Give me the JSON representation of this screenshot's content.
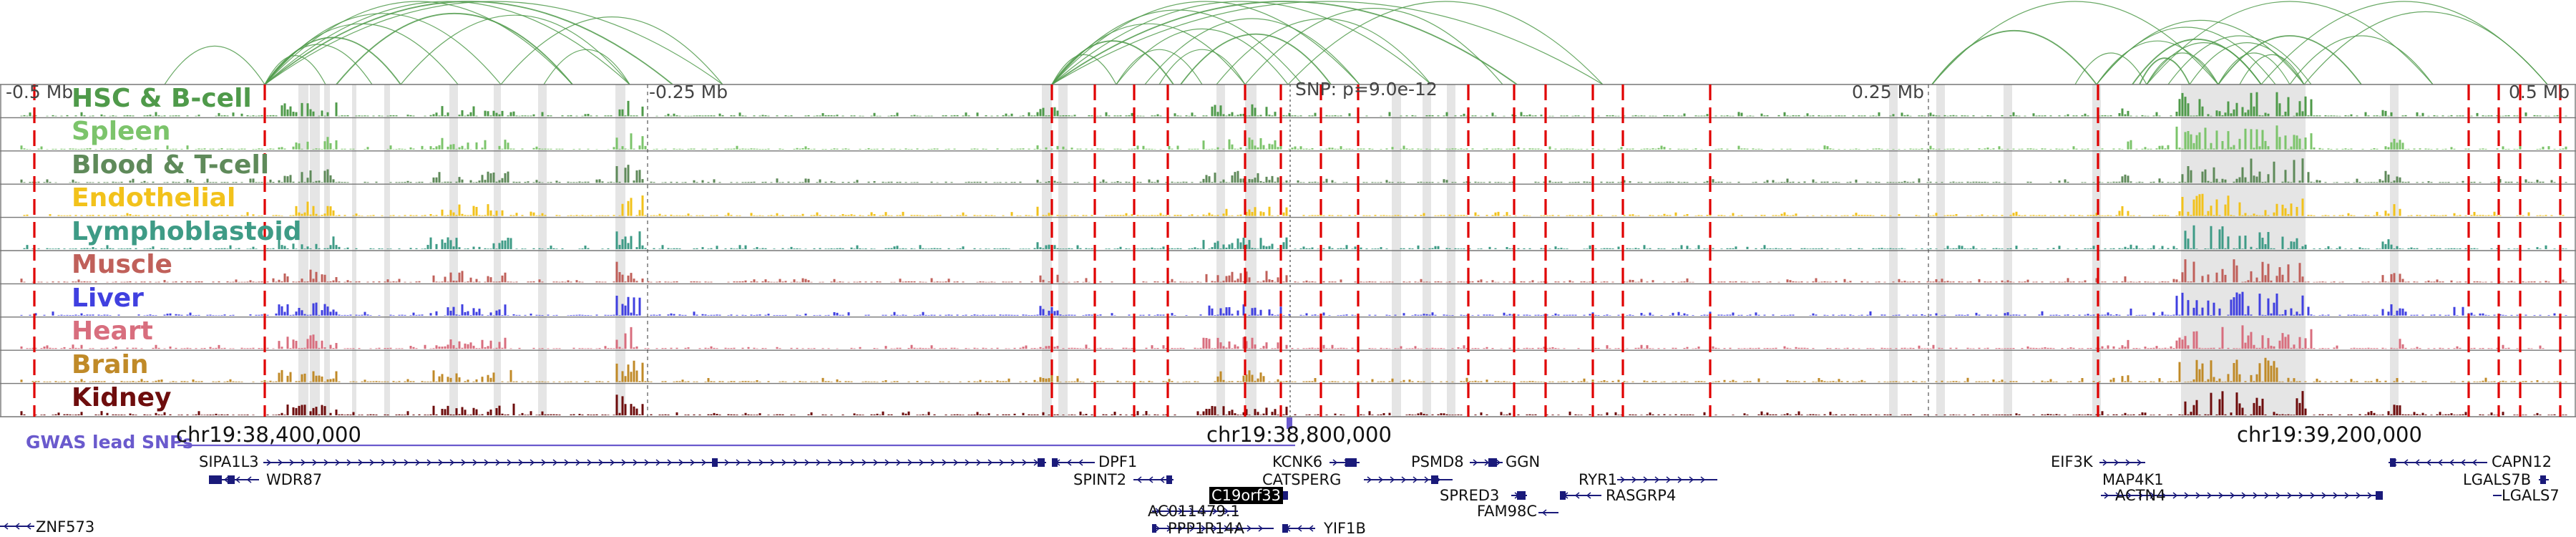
{
  "scale_labels": {
    "left_edge": "-0.5 Mb",
    "left_quarter": "-0.25 Mb",
    "snp": "SNP: p=9.0e-12",
    "right_quarter": "0.25 Mb",
    "right_edge": "0.5 Mb"
  },
  "tracks": [
    {
      "name": "HSC & B-cell",
      "color": "#4f9a4a"
    },
    {
      "name": "Spleen",
      "color": "#7cc46b"
    },
    {
      "name": "Blood & T-cell",
      "color": "#5f8a5a"
    },
    {
      "name": "Endothelial",
      "color": "#f2c21b"
    },
    {
      "name": "Lymphoblastoid",
      "color": "#3e9b86"
    },
    {
      "name": "Muscle",
      "color": "#c0605a"
    },
    {
      "name": "Liver",
      "color": "#4040e0"
    },
    {
      "name": "Heart",
      "color": "#d86e7e"
    },
    {
      "name": "Brain",
      "color": "#c08a28"
    },
    {
      "name": "Kidney",
      "color": "#6e0d0d"
    }
  ],
  "gwas": {
    "label": "GWAS lead SNPs"
  },
  "coordinates": [
    "chr19:38,400,000",
    "chr19:38,800,000",
    "chr19:39,200,000"
  ],
  "genes": [
    {
      "name": "SIPA1L3"
    },
    {
      "name": "WDR87"
    },
    {
      "name": "ZNF573"
    },
    {
      "name": "DPF1"
    },
    {
      "name": "SPINT2"
    },
    {
      "name": "C19orf33"
    },
    {
      "name": "AC011479.1"
    },
    {
      "name": "PPP1R14A"
    },
    {
      "name": "KCNK6"
    },
    {
      "name": "CATSPERG"
    },
    {
      "name": "YIF1B"
    },
    {
      "name": "PSMD8"
    },
    {
      "name": "GGN"
    },
    {
      "name": "SPRED3"
    },
    {
      "name": "FAM98C"
    },
    {
      "name": "RYR1"
    },
    {
      "name": "RASGRP4"
    },
    {
      "name": "EIF3K"
    },
    {
      "name": "MAP4K1"
    },
    {
      "name": "ACTN4"
    },
    {
      "name": "CAPN12"
    },
    {
      "name": "LGALS7B"
    },
    {
      "name": "LGALS7"
    }
  ],
  "colors": {
    "arc": "#4f9a4a",
    "boundary_line": "#e00000",
    "highlight": "#dcdcdc",
    "gene_model": "#1a1a7a",
    "gwas": "#6a5acd"
  }
}
